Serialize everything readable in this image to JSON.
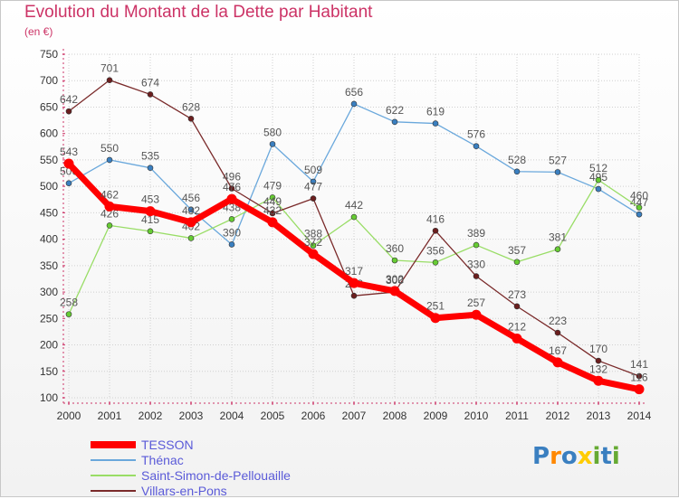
{
  "title": "Evolution du Montant de la Dette par Habitant",
  "subtitle": "(en €)",
  "logo_text": "Proxiti",
  "colors": {
    "title": "#cc3366",
    "grid": "#d0d0d0",
    "axis_text": "#333333",
    "label_text": "#555555",
    "legend_text": "#5a5ad8"
  },
  "chart_data": {
    "type": "line",
    "title": "Evolution du Montant de la Dette par Habitant",
    "subtitle": "(en €)",
    "x": [
      "2000",
      "2001",
      "2002",
      "2003",
      "2004",
      "2005",
      "2006",
      "2007",
      "2008",
      "2009",
      "2010",
      "2011",
      "2012",
      "2013",
      "2014"
    ],
    "yticks": [
      100,
      150,
      200,
      250,
      300,
      350,
      400,
      450,
      500,
      550,
      600,
      650,
      700,
      750
    ],
    "ylim": [
      100,
      750
    ],
    "grid": true,
    "legend_position": "bottom-left",
    "series": [
      {
        "name": "TESSON",
        "color": "#ff0000",
        "width": 7,
        "marker": "#ff0000",
        "values": [
          543,
          462,
          453,
          432,
          476,
          432,
          372,
          317,
          302,
          251,
          257,
          212,
          167,
          132,
          116
        ]
      },
      {
        "name": "Thénac",
        "color": "#6aa8dc",
        "width": 1.3,
        "marker": "#3a7fc0",
        "values": [
          506,
          550,
          535,
          456,
          390,
          580,
          509,
          656,
          622,
          619,
          576,
          528,
          527,
          495,
          447
        ]
      },
      {
        "name": "Saint-Simon-de-Pellouaille",
        "color": "#99dd66",
        "width": 1.3,
        "marker": "#66cc33",
        "values": [
          258,
          426,
          415,
          402,
          438,
          479,
          388,
          442,
          360,
          356,
          389,
          357,
          381,
          512,
          460
        ]
      },
      {
        "name": "Villars-en-Pons",
        "color": "#7a2a2a",
        "width": 1.3,
        "marker": "#6b1e1e",
        "values": [
          642,
          701,
          674,
          628,
          496,
          449,
          477,
          293,
          300,
          416,
          330,
          273,
          223,
          170,
          141
        ]
      }
    ]
  }
}
